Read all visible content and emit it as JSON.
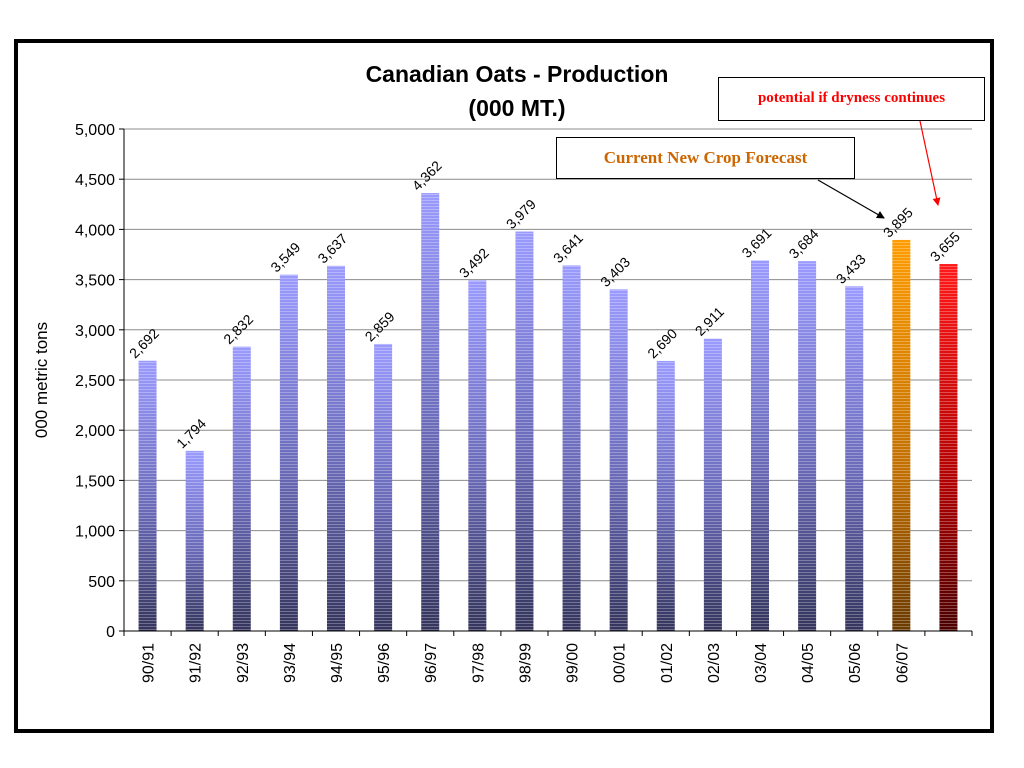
{
  "chart_data": {
    "type": "bar",
    "title": "Canadian Oats - Production",
    "subtitle": "(000 MT.)",
    "ylabel": "000 metric tons",
    "xlabel": "",
    "ylim": [
      0,
      5000
    ],
    "yticks": [
      0,
      500,
      1000,
      1500,
      2000,
      2500,
      3000,
      3500,
      4000,
      4500,
      5000
    ],
    "ytick_labels": [
      "0",
      "500",
      "1,000",
      "1,500",
      "2,000",
      "2,500",
      "3,000",
      "3,500",
      "4,000",
      "4,500",
      "5,000"
    ],
    "grid": true,
    "categories": [
      "90/91",
      "91/92",
      "92/93",
      "93/94",
      "94/95",
      "95/96",
      "96/97",
      "97/98",
      "98/99",
      "99/00",
      "00/01",
      "01/02",
      "02/03",
      "03/04",
      "04/05",
      "05/06",
      "06/07",
      ""
    ],
    "values": [
      2692,
      1794,
      2832,
      3549,
      3637,
      2859,
      4362,
      3492,
      3979,
      3641,
      3403,
      2690,
      2911,
      3691,
      3684,
      3433,
      3895,
      3655
    ],
    "value_labels": [
      "2,692",
      "1,794",
      "2,832",
      "3,549",
      "3,637",
      "2,859",
      "4,362",
      "3,492",
      "3,979",
      "3,641",
      "3,403",
      "2,690",
      "2,911",
      "3,691",
      "3,684",
      "3,433",
      "3,895",
      "3,655"
    ],
    "bar_colors": [
      "#9999ff",
      "#9999ff",
      "#9999ff",
      "#9999ff",
      "#9999ff",
      "#9999ff",
      "#9999ff",
      "#9999ff",
      "#9999ff",
      "#9999ff",
      "#9999ff",
      "#9999ff",
      "#9999ff",
      "#9999ff",
      "#9999ff",
      "#9999ff",
      "#ff9900",
      "#ff0000"
    ],
    "annotations": [
      {
        "text": "Current New Crop Forecast",
        "color": "#cc6600",
        "points_to": "06/07"
      },
      {
        "text": "potential if dryness continues",
        "color": "#ff0000",
        "points_to": 17
      }
    ]
  }
}
